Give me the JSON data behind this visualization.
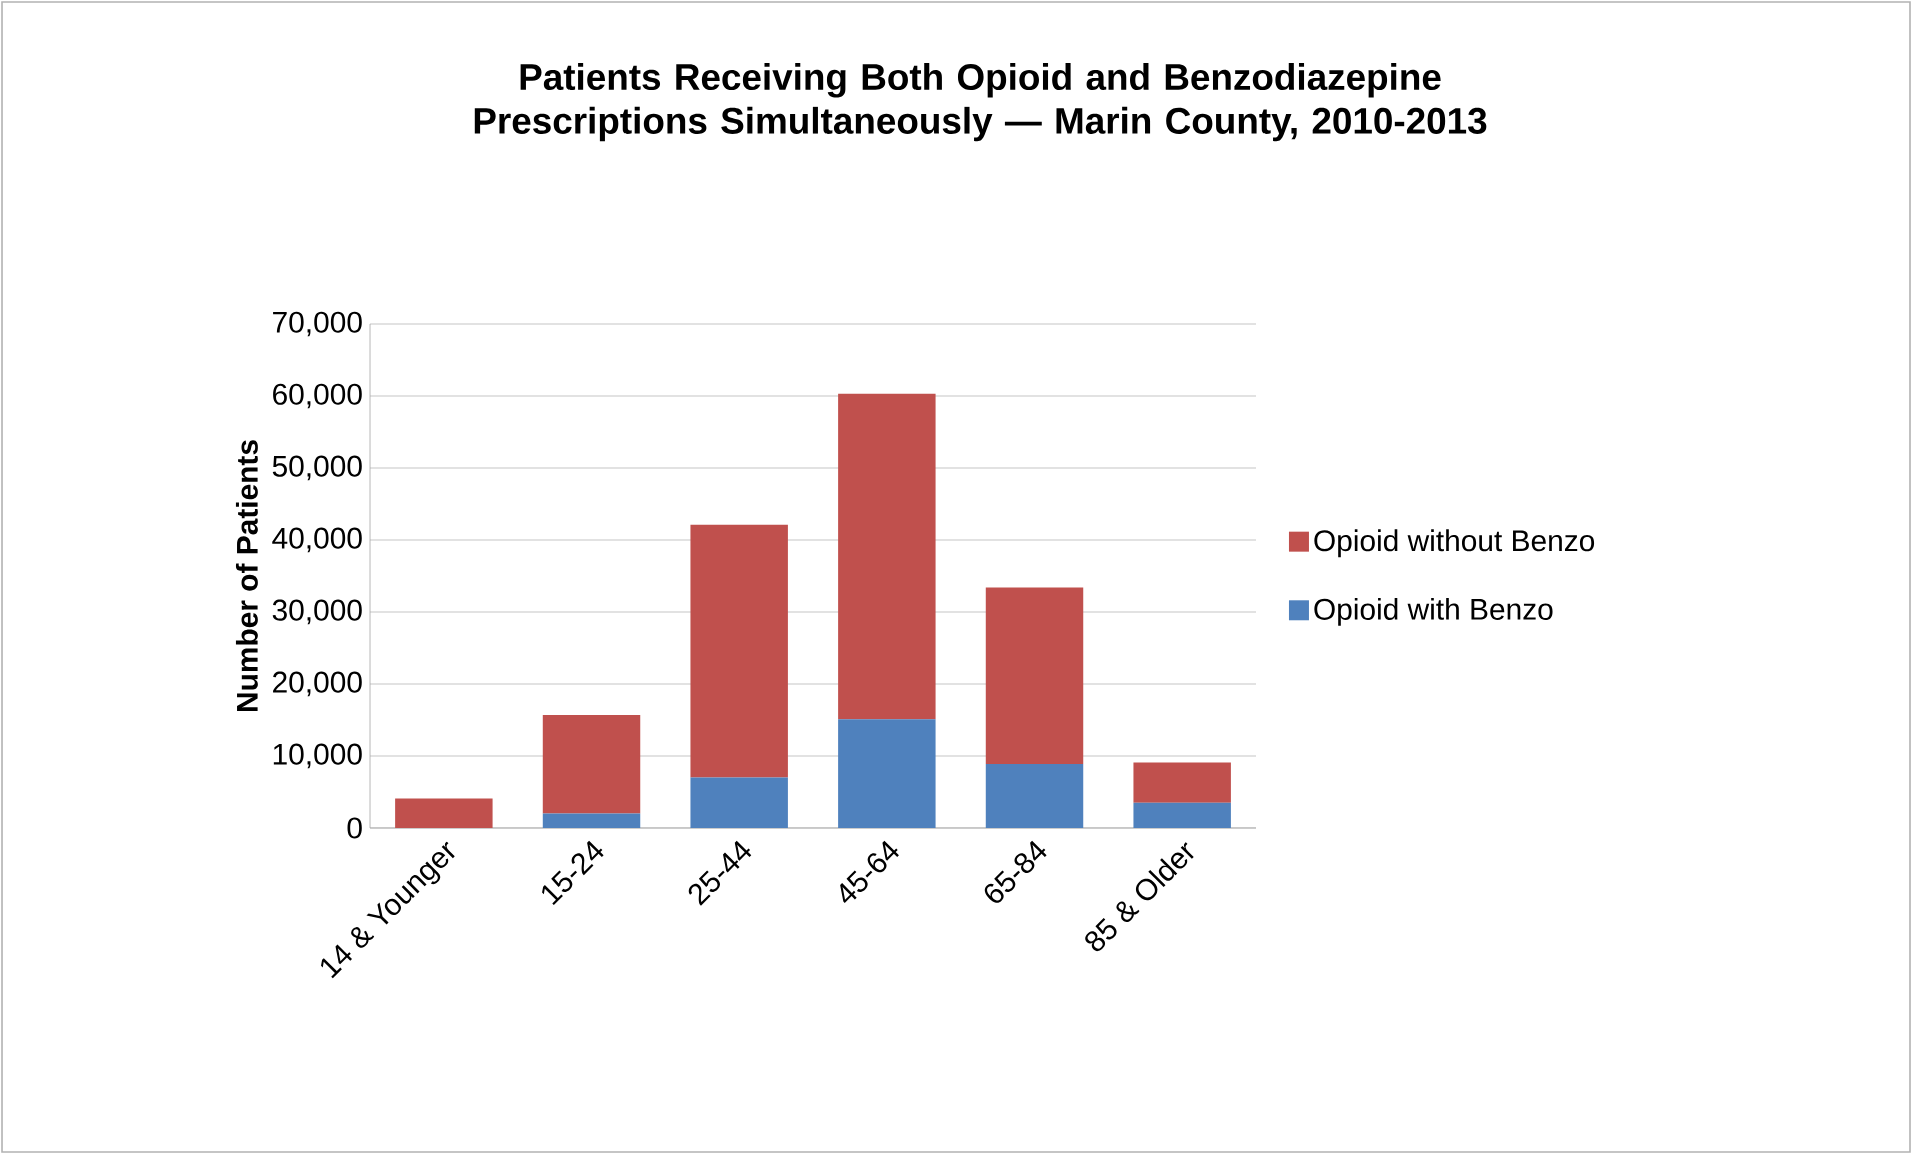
{
  "chart_data": {
    "type": "bar",
    "title": "Patients Receiving Both Opioid and Benzodiazepine Prescriptions Simultaneously — Marin County, 2010-2013",
    "ylabel": "Number of Patients",
    "categories": [
      "14 & Younger",
      "15-24",
      "25-44",
      "45-64",
      "65-84",
      "85 & Older"
    ],
    "stacked": true,
    "series": [
      {
        "name": "Opioid with Benzo",
        "color": "#4f81bd",
        "values": [
          0,
          2000,
          7000,
          15100,
          8900,
          3500
        ]
      },
      {
        "name": "Opioid without Benzo",
        "color": "#c0504d",
        "values": [
          4100,
          13700,
          35100,
          45200,
          24500,
          5600
        ]
      }
    ],
    "ylim": [
      0,
      70000
    ],
    "yticks": [
      {
        "value": 0,
        "label": "0"
      },
      {
        "value": 10000,
        "label": "10,000"
      },
      {
        "value": 20000,
        "label": "20,000"
      },
      {
        "value": 30000,
        "label": "30,000"
      },
      {
        "value": 40000,
        "label": "40,000"
      },
      {
        "value": 50000,
        "label": "50,000"
      },
      {
        "value": 60000,
        "label": "60,000"
      },
      {
        "value": 70000,
        "label": "70,000"
      }
    ],
    "grid": "y",
    "legend": "right"
  }
}
